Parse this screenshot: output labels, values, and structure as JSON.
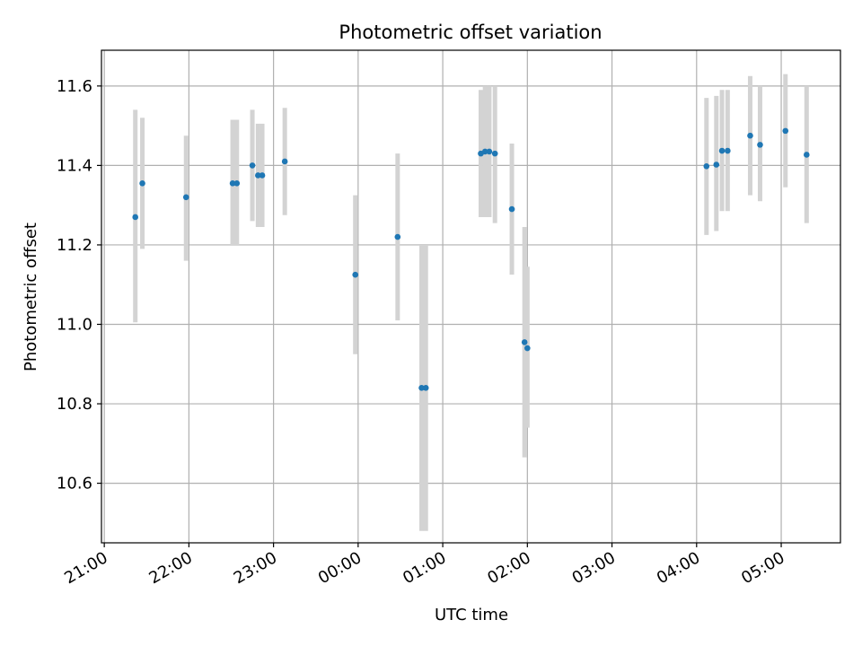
{
  "chart_data": {
    "type": "scatter",
    "title": "Photometric offset variation",
    "xlabel": "UTC time",
    "ylabel": "Photometric offset",
    "x_ticks": [
      "21:00",
      "22:00",
      "23:00",
      "00:00",
      "01:00",
      "02:00",
      "03:00",
      "04:00",
      "05:00"
    ],
    "y_ticks": [
      "10.6",
      "10.8",
      "11.0",
      "11.2",
      "11.4",
      "11.6"
    ],
    "xlim": [
      "20:58",
      "05:42"
    ],
    "ylim": [
      10.45,
      11.69
    ],
    "grid": true,
    "marker_color": "#1f77b4",
    "errorbar_color": "#d3d3d3",
    "series": [
      {
        "points": [
          {
            "t": "21:22",
            "y": 11.27,
            "lo": 11.005,
            "hi": 11.54
          },
          {
            "t": "21:27",
            "y": 11.355,
            "lo": 11.19,
            "hi": 11.52
          },
          {
            "t": "21:58",
            "y": 11.32,
            "lo": 11.16,
            "hi": 11.475
          },
          {
            "t": "22:31",
            "y": 11.355,
            "lo": 11.2,
            "hi": 11.515
          },
          {
            "t": "22:34",
            "y": 11.355,
            "lo": 11.2,
            "hi": 11.515
          },
          {
            "t": "22:45",
            "y": 11.4,
            "lo": 11.26,
            "hi": 11.54
          },
          {
            "t": "22:49",
            "y": 11.375,
            "lo": 11.245,
            "hi": 11.505
          },
          {
            "t": "22:52",
            "y": 11.375,
            "lo": 11.245,
            "hi": 11.505
          },
          {
            "t": "23:08",
            "y": 11.41,
            "lo": 11.275,
            "hi": 11.545
          },
          {
            "t": "23:58",
            "y": 11.125,
            "lo": 10.925,
            "hi": 11.325
          },
          {
            "t": "00:28",
            "y": 11.22,
            "lo": 11.01,
            "hi": 11.43
          },
          {
            "t": "00:45",
            "y": 10.84,
            "lo": 10.48,
            "hi": 11.2
          },
          {
            "t": "00:48",
            "y": 10.84,
            "lo": 10.48,
            "hi": 11.2
          },
          {
            "t": "01:27",
            "y": 11.43,
            "lo": 11.27,
            "hi": 11.59
          },
          {
            "t": "01:30",
            "y": 11.435,
            "lo": 11.27,
            "hi": 11.6
          },
          {
            "t": "01:33",
            "y": 11.435,
            "lo": 11.27,
            "hi": 11.6
          },
          {
            "t": "01:37",
            "y": 11.43,
            "lo": 11.255,
            "hi": 11.6
          },
          {
            "t": "01:49",
            "y": 11.29,
            "lo": 11.125,
            "hi": 11.455
          },
          {
            "t": "01:58",
            "y": 10.955,
            "lo": 10.665,
            "hi": 11.245
          },
          {
            "t": "02:00",
            "y": 10.94,
            "lo": 10.74,
            "hi": 11.145
          },
          {
            "t": "04:07",
            "y": 11.398,
            "lo": 11.225,
            "hi": 11.57
          },
          {
            "t": "04:14",
            "y": 11.402,
            "lo": 11.235,
            "hi": 11.575
          },
          {
            "t": "04:18",
            "y": 11.437,
            "lo": 11.285,
            "hi": 11.59
          },
          {
            "t": "04:22",
            "y": 11.437,
            "lo": 11.285,
            "hi": 11.59
          },
          {
            "t": "04:38",
            "y": 11.475,
            "lo": 11.325,
            "hi": 11.625
          },
          {
            "t": "04:45",
            "y": 11.452,
            "lo": 11.31,
            "hi": 11.6
          },
          {
            "t": "05:03",
            "y": 11.487,
            "lo": 11.345,
            "hi": 11.63
          },
          {
            "t": "05:18",
            "y": 11.427,
            "lo": 11.255,
            "hi": 11.6
          }
        ]
      }
    ]
  }
}
